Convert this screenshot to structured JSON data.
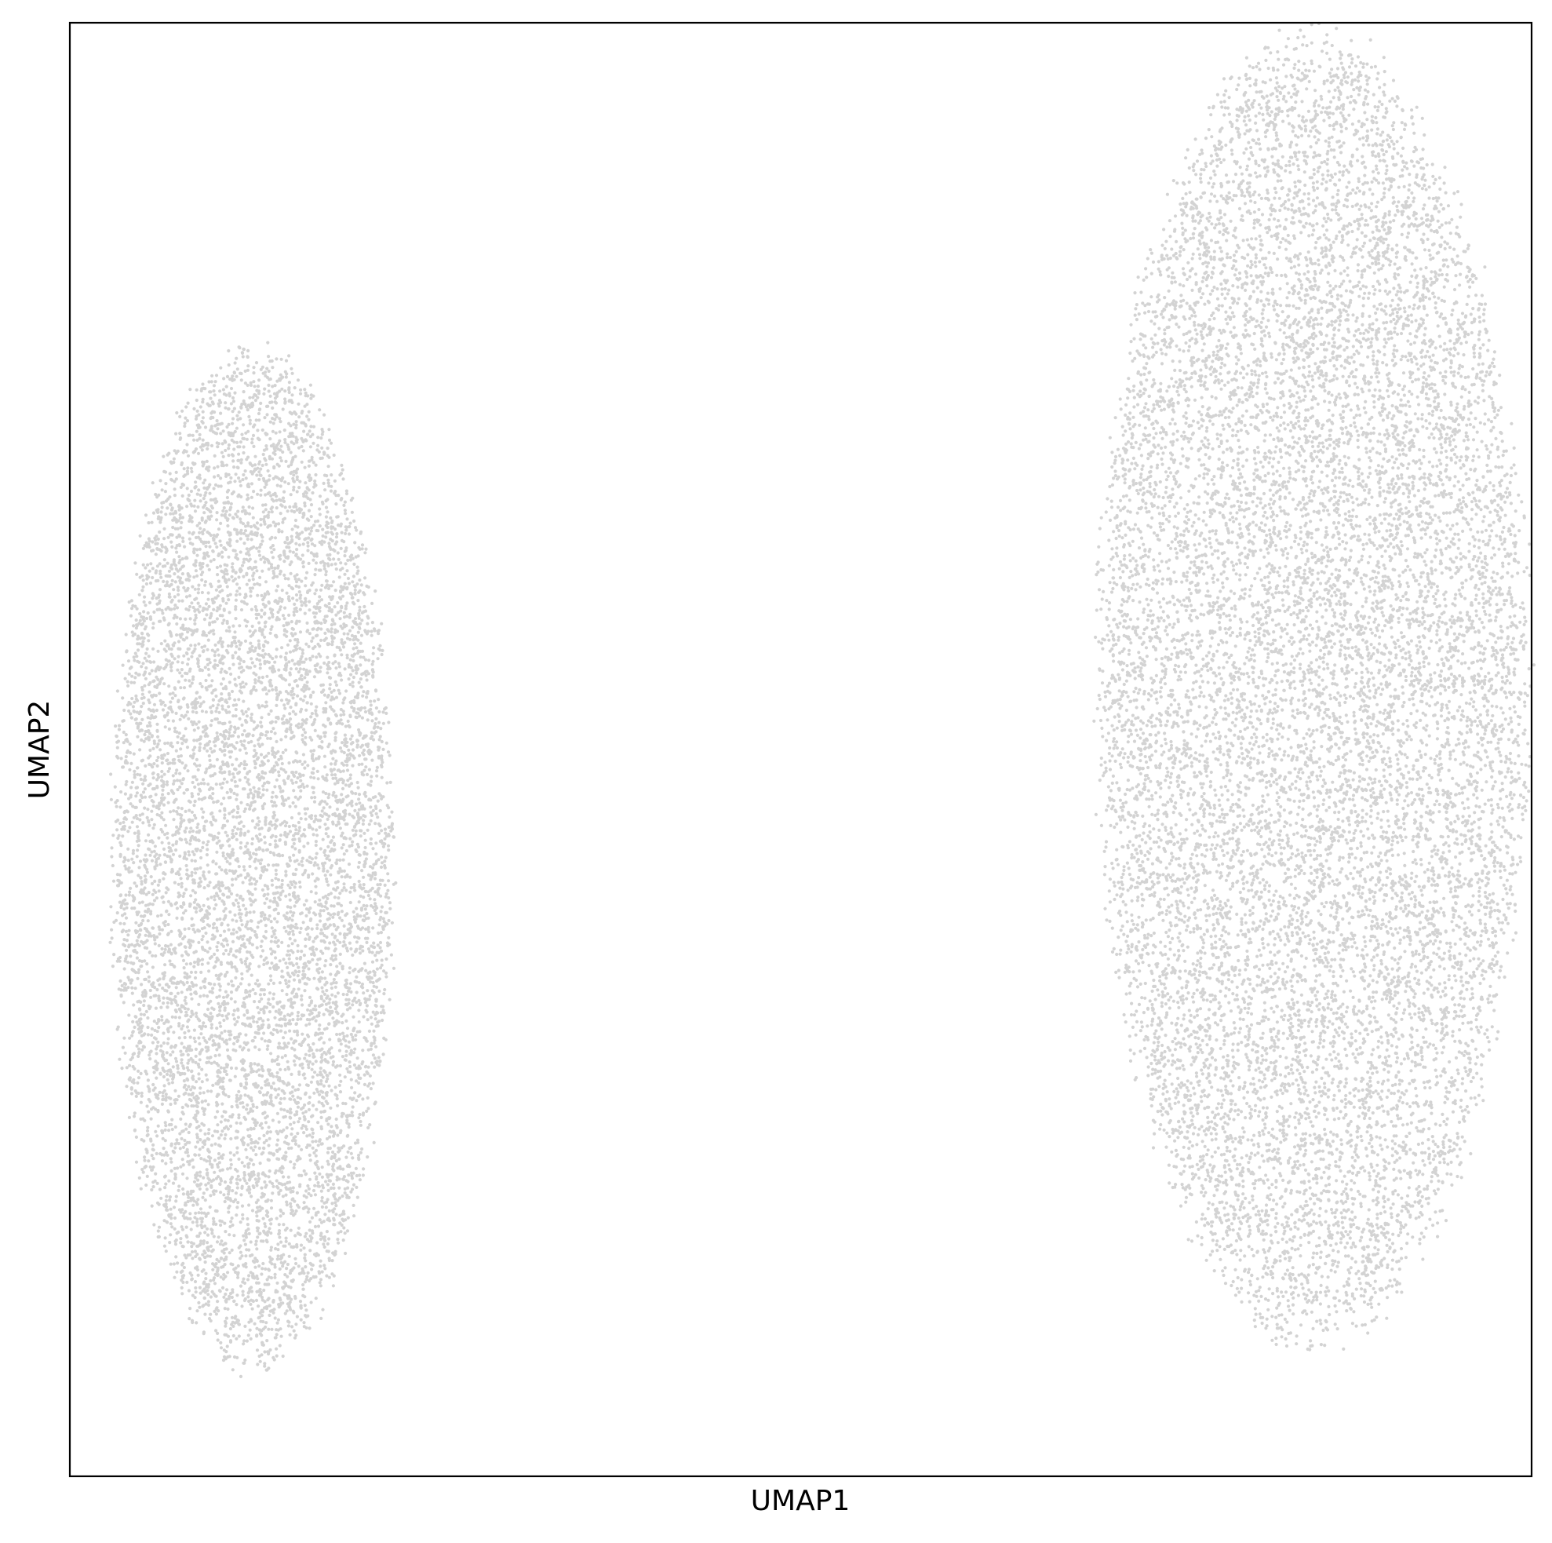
{
  "chart_data": {
    "type": "scatter",
    "title": "",
    "xlabel": "UMAP1",
    "ylabel": "UMAP2",
    "xticks": [],
    "yticks": [],
    "xlim": [
      -16,
      16
    ],
    "ylim": [
      -12,
      12
    ],
    "grid": false,
    "legend": "none",
    "point_color": "#d3d3d3",
    "series": [
      {
        "cluster": "left",
        "center": [
          -12.0,
          -1.8
        ],
        "spread": [
          3.0,
          8.2
        ],
        "point_count": 9000
      },
      {
        "cluster": "right",
        "center": [
          11.2,
          1.0
        ],
        "spread": [
          4.6,
          10.5
        ],
        "point_count": 14000
      }
    ]
  }
}
